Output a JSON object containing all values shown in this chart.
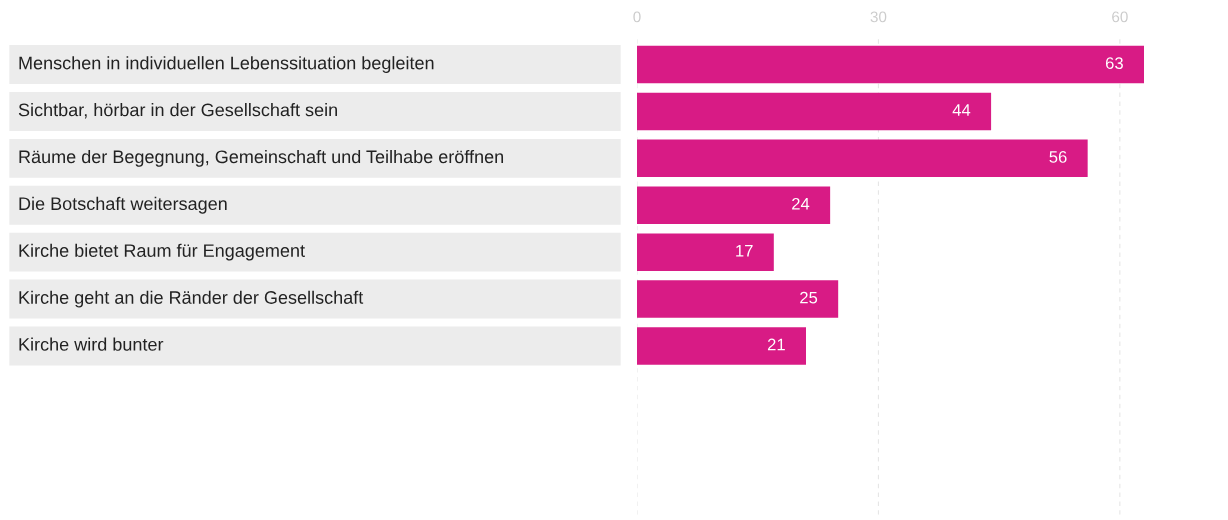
{
  "chart_data": {
    "type": "bar",
    "orientation": "horizontal",
    "categories": [
      "Menschen in individuellen Lebenssituation begleiten",
      "Sichtbar, hörbar in der Gesellschaft sein",
      "Räume der Begegnung, Gemeinschaft und Teilhabe eröffnen",
      "Die Botschaft weitersagen",
      "Kirche bietet Raum für Engagement",
      "Kirche geht an die Ränder der Gesellschaft",
      "Kirche wird bunter"
    ],
    "values": [
      63,
      44,
      56,
      24,
      17,
      25,
      21
    ],
    "color": "#d81b85",
    "xlim": [
      0,
      63
    ],
    "xticks": [
      0,
      30,
      60
    ],
    "grid": "x",
    "data_labels": true
  }
}
